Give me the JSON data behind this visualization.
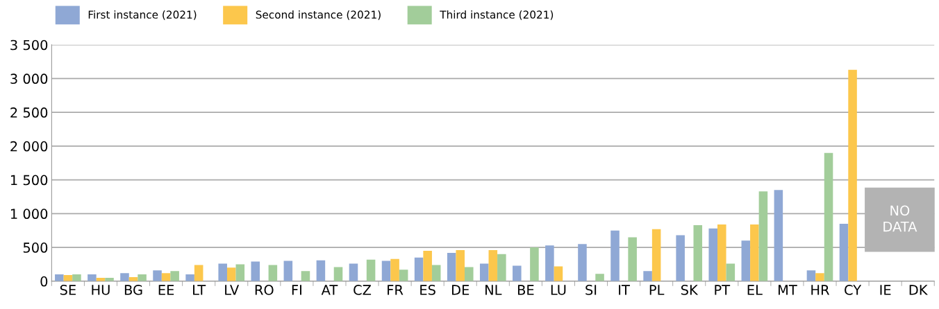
{
  "chart_data": {
    "type": "bar",
    "categories": [
      "SE",
      "HU",
      "BG",
      "EE",
      "LT",
      "LV",
      "RO",
      "FI",
      "AT",
      "CZ",
      "FR",
      "ES",
      "DE",
      "NL",
      "BE",
      "LU",
      "SI",
      "IT",
      "PL",
      "SK",
      "PT",
      "EL",
      "MT",
      "HR",
      "CY",
      "IE",
      "DK"
    ],
    "series": [
      {
        "name": "First instance (2021)",
        "color": "#8fa8d5",
        "values": [
          100,
          100,
          120,
          160,
          100,
          260,
          290,
          300,
          310,
          260,
          300,
          350,
          420,
          260,
          230,
          530,
          550,
          750,
          150,
          680,
          780,
          600,
          1350,
          160,
          850,
          null,
          null
        ]
      },
      {
        "name": "Second instance (2021)",
        "color": "#fcc74c",
        "values": [
          90,
          50,
          60,
          120,
          240,
          200,
          null,
          null,
          null,
          null,
          330,
          450,
          460,
          460,
          null,
          220,
          null,
          null,
          770,
          null,
          840,
          840,
          null,
          120,
          3130,
          null,
          null
        ]
      },
      {
        "name": "Third instance (2021)",
        "color": "#a2cd9a",
        "values": [
          100,
          50,
          100,
          150,
          null,
          250,
          240,
          150,
          210,
          320,
          170,
          240,
          210,
          400,
          500,
          null,
          110,
          650,
          null,
          830,
          260,
          1330,
          null,
          1900,
          null,
          null,
          null
        ]
      }
    ],
    "ylim": [
      0,
      3500
    ],
    "yticks": [
      0,
      {
        "value": 500,
        "label": "500"
      },
      {
        "value": 1000,
        "label": "1 000"
      },
      {
        "value": 1500,
        "label": "1 500"
      },
      {
        "value": 2000,
        "label": "2 000"
      },
      {
        "value": 2500,
        "label": "2 500"
      },
      {
        "value": 3000,
        "label": "3 000"
      },
      {
        "value": 3500,
        "label": "3 500"
      }
    ],
    "grid": "y",
    "legend": "top left",
    "annotations": [
      "NO\nDATA"
    ]
  }
}
